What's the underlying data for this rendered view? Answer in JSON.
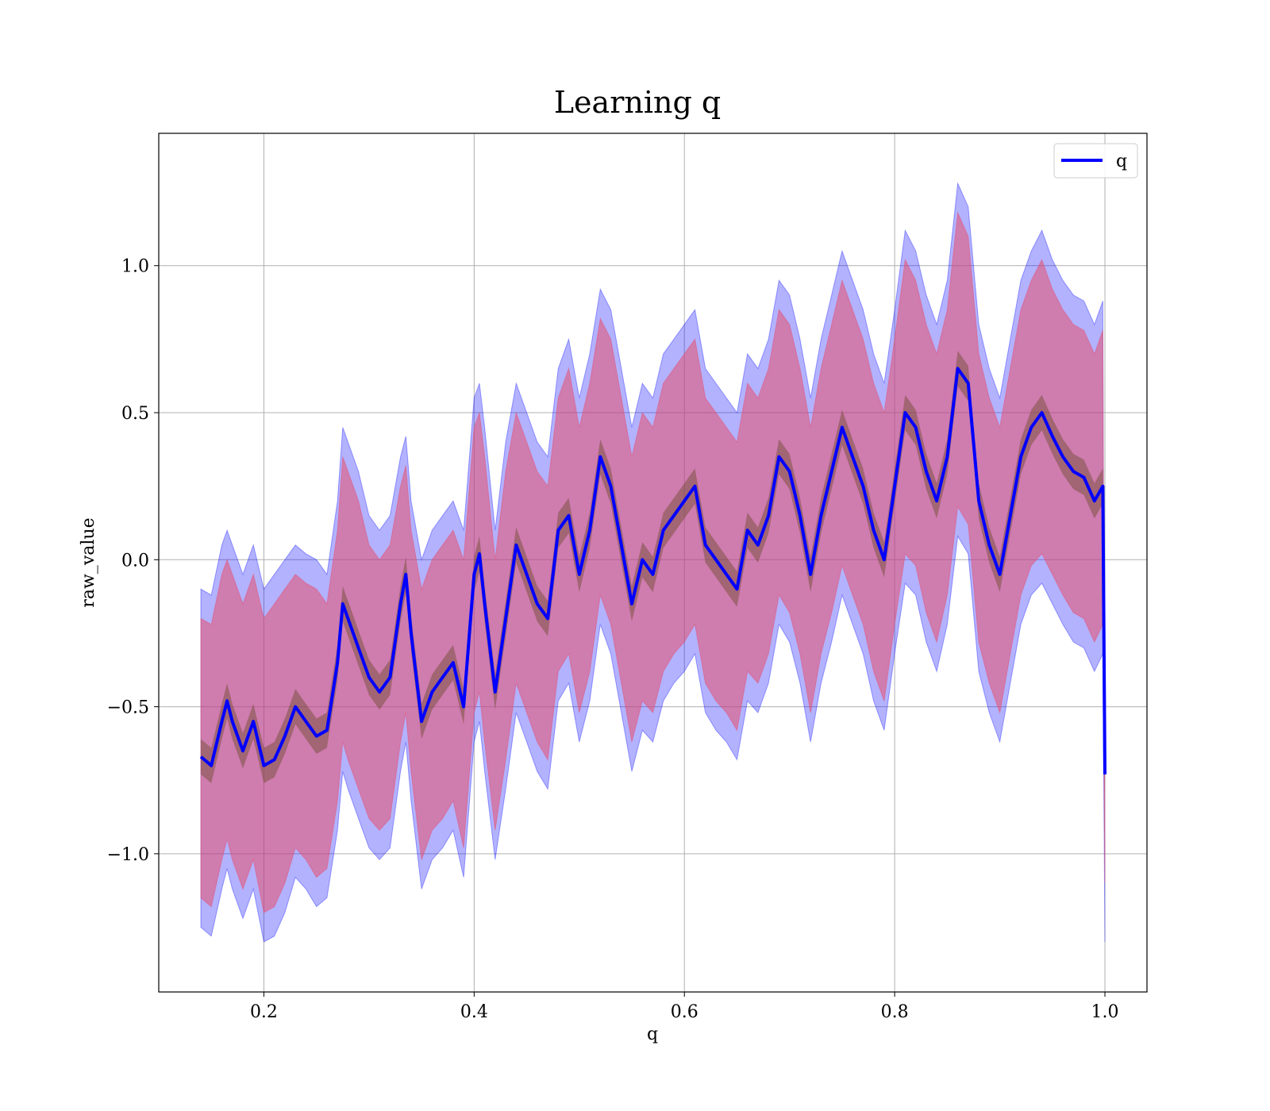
{
  "chart_data": {
    "type": "line",
    "title": "Learning q",
    "xlabel": "q",
    "ylabel": "raw_value",
    "xlim": [
      0.1,
      1.04
    ],
    "ylim": [
      -1.47,
      1.45
    ],
    "xticks": [
      0.2,
      0.4,
      0.6,
      0.8,
      1.0
    ],
    "xtick_labels": [
      "0.2",
      "0.4",
      "0.6",
      "0.8",
      "1.0"
    ],
    "yticks": [
      -1.0,
      -0.5,
      0.0,
      0.5,
      1.0
    ],
    "ytick_labels": [
      "−1.0",
      "−0.5",
      "0.0",
      "0.5",
      "1.0"
    ],
    "grid": true,
    "legend_position": "top-right",
    "colors": {
      "line": "#0000ff",
      "outer_band": "#0000ff",
      "inner_band": "#e8506e",
      "mean_band": "#6b4a2a",
      "grid": "#b0b0b0"
    },
    "series": [
      {
        "name": "q",
        "role": "mean-line",
        "x": [
          0.14,
          0.15,
          0.16,
          0.165,
          0.17,
          0.18,
          0.19,
          0.2,
          0.21,
          0.22,
          0.23,
          0.24,
          0.25,
          0.26,
          0.27,
          0.275,
          0.28,
          0.29,
          0.3,
          0.31,
          0.32,
          0.33,
          0.335,
          0.34,
          0.35,
          0.36,
          0.37,
          0.38,
          0.39,
          0.4,
          0.405,
          0.41,
          0.42,
          0.43,
          0.44,
          0.45,
          0.46,
          0.47,
          0.48,
          0.49,
          0.5,
          0.51,
          0.52,
          0.53,
          0.54,
          0.55,
          0.56,
          0.57,
          0.58,
          0.59,
          0.6,
          0.61,
          0.62,
          0.63,
          0.64,
          0.65,
          0.66,
          0.67,
          0.68,
          0.69,
          0.7,
          0.71,
          0.72,
          0.73,
          0.74,
          0.75,
          0.76,
          0.77,
          0.78,
          0.79,
          0.8,
          0.81,
          0.82,
          0.83,
          0.84,
          0.85,
          0.86,
          0.87,
          0.88,
          0.89,
          0.9,
          0.91,
          0.92,
          0.93,
          0.94,
          0.95,
          0.96,
          0.97,
          0.98,
          0.99,
          0.998,
          1.0
        ],
        "values": [
          -0.67,
          -0.7,
          -0.55,
          -0.48,
          -0.55,
          -0.65,
          -0.55,
          -0.7,
          -0.68,
          -0.6,
          -0.5,
          -0.55,
          -0.6,
          -0.58,
          -0.35,
          -0.15,
          -0.2,
          -0.3,
          -0.4,
          -0.45,
          -0.4,
          -0.15,
          -0.05,
          -0.25,
          -0.55,
          -0.45,
          -0.4,
          -0.35,
          -0.5,
          -0.05,
          0.02,
          -0.15,
          -0.45,
          -0.2,
          0.05,
          -0.05,
          -0.15,
          -0.2,
          0.1,
          0.15,
          -0.05,
          0.1,
          0.35,
          0.25,
          0.05,
          -0.15,
          0.0,
          -0.05,
          0.1,
          0.15,
          0.2,
          0.25,
          0.05,
          0.0,
          -0.05,
          -0.1,
          0.1,
          0.05,
          0.15,
          0.35,
          0.3,
          0.15,
          -0.05,
          0.15,
          0.3,
          0.45,
          0.35,
          0.25,
          0.1,
          0.0,
          0.25,
          0.5,
          0.45,
          0.3,
          0.2,
          0.35,
          0.65,
          0.6,
          0.2,
          0.05,
          -0.05,
          0.15,
          0.35,
          0.45,
          0.5,
          0.42,
          0.35,
          0.3,
          0.28,
          0.2,
          0.25,
          -0.73
        ]
      },
      {
        "role": "outer-band-upper",
        "x": [
          0.14,
          0.15,
          0.16,
          0.165,
          0.17,
          0.18,
          0.19,
          0.2,
          0.21,
          0.22,
          0.23,
          0.24,
          0.25,
          0.26,
          0.27,
          0.275,
          0.28,
          0.29,
          0.3,
          0.31,
          0.32,
          0.33,
          0.335,
          0.34,
          0.35,
          0.36,
          0.37,
          0.38,
          0.39,
          0.4,
          0.405,
          0.41,
          0.42,
          0.43,
          0.44,
          0.45,
          0.46,
          0.47,
          0.48,
          0.49,
          0.5,
          0.51,
          0.52,
          0.53,
          0.54,
          0.55,
          0.56,
          0.57,
          0.58,
          0.59,
          0.6,
          0.61,
          0.62,
          0.63,
          0.64,
          0.65,
          0.66,
          0.67,
          0.68,
          0.69,
          0.7,
          0.71,
          0.72,
          0.73,
          0.74,
          0.75,
          0.76,
          0.77,
          0.78,
          0.79,
          0.8,
          0.81,
          0.82,
          0.83,
          0.84,
          0.85,
          0.86,
          0.87,
          0.88,
          0.89,
          0.9,
          0.91,
          0.92,
          0.93,
          0.94,
          0.95,
          0.96,
          0.97,
          0.98,
          0.99,
          0.998,
          1.0
        ],
        "values": [
          -0.1,
          -0.12,
          0.05,
          0.1,
          0.05,
          -0.05,
          0.05,
          -0.1,
          -0.05,
          0.0,
          0.05,
          0.02,
          0.0,
          -0.05,
          0.2,
          0.45,
          0.4,
          0.3,
          0.15,
          0.1,
          0.15,
          0.35,
          0.42,
          0.2,
          0.0,
          0.1,
          0.15,
          0.2,
          0.1,
          0.55,
          0.6,
          0.45,
          0.1,
          0.4,
          0.6,
          0.5,
          0.4,
          0.35,
          0.65,
          0.75,
          0.55,
          0.7,
          0.92,
          0.85,
          0.65,
          0.45,
          0.6,
          0.55,
          0.7,
          0.75,
          0.8,
          0.85,
          0.65,
          0.6,
          0.55,
          0.5,
          0.7,
          0.65,
          0.75,
          0.95,
          0.9,
          0.75,
          0.55,
          0.75,
          0.9,
          1.05,
          0.95,
          0.85,
          0.7,
          0.6,
          0.85,
          1.12,
          1.05,
          0.9,
          0.8,
          0.95,
          1.28,
          1.2,
          0.8,
          0.65,
          0.55,
          0.75,
          0.95,
          1.05,
          1.12,
          1.02,
          0.95,
          0.9,
          0.88,
          0.8,
          0.88,
          -1.3
        ]
      },
      {
        "role": "outer-band-lower",
        "x": [
          0.14,
          0.15,
          0.16,
          0.165,
          0.17,
          0.18,
          0.19,
          0.2,
          0.21,
          0.22,
          0.23,
          0.24,
          0.25,
          0.26,
          0.27,
          0.275,
          0.28,
          0.29,
          0.3,
          0.31,
          0.32,
          0.33,
          0.335,
          0.34,
          0.35,
          0.36,
          0.37,
          0.38,
          0.39,
          0.4,
          0.405,
          0.41,
          0.42,
          0.43,
          0.44,
          0.45,
          0.46,
          0.47,
          0.48,
          0.49,
          0.5,
          0.51,
          0.52,
          0.53,
          0.54,
          0.55,
          0.56,
          0.57,
          0.58,
          0.59,
          0.6,
          0.61,
          0.62,
          0.63,
          0.64,
          0.65,
          0.66,
          0.67,
          0.68,
          0.69,
          0.7,
          0.71,
          0.72,
          0.73,
          0.74,
          0.75,
          0.76,
          0.77,
          0.78,
          0.79,
          0.8,
          0.81,
          0.82,
          0.83,
          0.84,
          0.85,
          0.86,
          0.87,
          0.88,
          0.89,
          0.9,
          0.91,
          0.92,
          0.93,
          0.94,
          0.95,
          0.96,
          0.97,
          0.98,
          0.99,
          0.998,
          1.0
        ],
        "values": [
          -1.25,
          -1.28,
          -1.12,
          -1.05,
          -1.12,
          -1.22,
          -1.12,
          -1.3,
          -1.28,
          -1.2,
          -1.08,
          -1.12,
          -1.18,
          -1.15,
          -0.92,
          -0.72,
          -0.78,
          -0.88,
          -0.98,
          -1.02,
          -0.98,
          -0.72,
          -0.62,
          -0.82,
          -1.12,
          -1.02,
          -0.98,
          -0.92,
          -1.08,
          -0.62,
          -0.55,
          -0.72,
          -1.02,
          -0.78,
          -0.52,
          -0.62,
          -0.72,
          -0.78,
          -0.48,
          -0.42,
          -0.62,
          -0.48,
          -0.22,
          -0.32,
          -0.52,
          -0.72,
          -0.58,
          -0.62,
          -0.48,
          -0.42,
          -0.38,
          -0.32,
          -0.52,
          -0.58,
          -0.62,
          -0.68,
          -0.48,
          -0.52,
          -0.42,
          -0.22,
          -0.28,
          -0.42,
          -0.62,
          -0.42,
          -0.28,
          -0.12,
          -0.22,
          -0.32,
          -0.48,
          -0.58,
          -0.32,
          -0.08,
          -0.12,
          -0.28,
          -0.38,
          -0.22,
          0.08,
          0.02,
          -0.38,
          -0.52,
          -0.62,
          -0.42,
          -0.22,
          -0.12,
          -0.08,
          -0.15,
          -0.22,
          -0.28,
          -0.3,
          -0.38,
          -0.32,
          -1.3
        ]
      },
      {
        "role": "inner-band-upper",
        "x": [
          0.14,
          0.15,
          0.16,
          0.165,
          0.17,
          0.18,
          0.19,
          0.2,
          0.21,
          0.22,
          0.23,
          0.24,
          0.25,
          0.26,
          0.27,
          0.275,
          0.28,
          0.29,
          0.3,
          0.31,
          0.32,
          0.33,
          0.335,
          0.34,
          0.35,
          0.36,
          0.37,
          0.38,
          0.39,
          0.4,
          0.405,
          0.41,
          0.42,
          0.43,
          0.44,
          0.45,
          0.46,
          0.47,
          0.48,
          0.49,
          0.5,
          0.51,
          0.52,
          0.53,
          0.54,
          0.55,
          0.56,
          0.57,
          0.58,
          0.59,
          0.6,
          0.61,
          0.62,
          0.63,
          0.64,
          0.65,
          0.66,
          0.67,
          0.68,
          0.69,
          0.7,
          0.71,
          0.72,
          0.73,
          0.74,
          0.75,
          0.76,
          0.77,
          0.78,
          0.79,
          0.8,
          0.81,
          0.82,
          0.83,
          0.84,
          0.85,
          0.86,
          0.87,
          0.88,
          0.89,
          0.9,
          0.91,
          0.92,
          0.93,
          0.94,
          0.95,
          0.96,
          0.97,
          0.98,
          0.99,
          0.998,
          1.0
        ],
        "values": [
          -0.2,
          -0.22,
          -0.05,
          0.0,
          -0.05,
          -0.15,
          -0.05,
          -0.2,
          -0.15,
          -0.1,
          -0.05,
          -0.08,
          -0.1,
          -0.15,
          0.1,
          0.35,
          0.3,
          0.2,
          0.05,
          0.0,
          0.05,
          0.25,
          0.32,
          0.1,
          -0.1,
          0.0,
          0.05,
          0.1,
          0.0,
          0.45,
          0.5,
          0.35,
          0.0,
          0.3,
          0.5,
          0.4,
          0.3,
          0.25,
          0.55,
          0.65,
          0.45,
          0.6,
          0.82,
          0.75,
          0.55,
          0.35,
          0.5,
          0.45,
          0.6,
          0.65,
          0.7,
          0.75,
          0.55,
          0.5,
          0.45,
          0.4,
          0.6,
          0.55,
          0.65,
          0.85,
          0.8,
          0.65,
          0.45,
          0.65,
          0.8,
          0.95,
          0.85,
          0.75,
          0.6,
          0.5,
          0.75,
          1.02,
          0.95,
          0.8,
          0.7,
          0.85,
          1.18,
          1.1,
          0.7,
          0.55,
          0.45,
          0.65,
          0.85,
          0.95,
          1.02,
          0.92,
          0.85,
          0.8,
          0.78,
          0.7,
          0.78,
          -1.0
        ]
      },
      {
        "role": "inner-band-lower",
        "x": [
          0.14,
          0.15,
          0.16,
          0.165,
          0.17,
          0.18,
          0.19,
          0.2,
          0.21,
          0.22,
          0.23,
          0.24,
          0.25,
          0.26,
          0.27,
          0.275,
          0.28,
          0.29,
          0.3,
          0.31,
          0.32,
          0.33,
          0.335,
          0.34,
          0.35,
          0.36,
          0.37,
          0.38,
          0.39,
          0.4,
          0.405,
          0.41,
          0.42,
          0.43,
          0.44,
          0.45,
          0.46,
          0.47,
          0.48,
          0.49,
          0.5,
          0.51,
          0.52,
          0.53,
          0.54,
          0.55,
          0.56,
          0.57,
          0.58,
          0.59,
          0.6,
          0.61,
          0.62,
          0.63,
          0.64,
          0.65,
          0.66,
          0.67,
          0.68,
          0.69,
          0.7,
          0.71,
          0.72,
          0.73,
          0.74,
          0.75,
          0.76,
          0.77,
          0.78,
          0.79,
          0.8,
          0.81,
          0.82,
          0.83,
          0.84,
          0.85,
          0.86,
          0.87,
          0.88,
          0.89,
          0.9,
          0.91,
          0.92,
          0.93,
          0.94,
          0.95,
          0.96,
          0.97,
          0.98,
          0.99,
          0.998,
          1.0
        ],
        "values": [
          -1.15,
          -1.18,
          -1.02,
          -0.95,
          -1.02,
          -1.12,
          -1.02,
          -1.2,
          -1.18,
          -1.1,
          -0.98,
          -1.02,
          -1.08,
          -1.05,
          -0.82,
          -0.62,
          -0.68,
          -0.78,
          -0.88,
          -0.92,
          -0.88,
          -0.62,
          -0.52,
          -0.72,
          -1.02,
          -0.92,
          -0.88,
          -0.82,
          -0.98,
          -0.52,
          -0.45,
          -0.62,
          -0.92,
          -0.68,
          -0.42,
          -0.52,
          -0.62,
          -0.68,
          -0.38,
          -0.32,
          -0.52,
          -0.38,
          -0.12,
          -0.22,
          -0.42,
          -0.62,
          -0.48,
          -0.52,
          -0.38,
          -0.32,
          -0.28,
          -0.22,
          -0.42,
          -0.48,
          -0.52,
          -0.58,
          -0.38,
          -0.42,
          -0.32,
          -0.12,
          -0.18,
          -0.32,
          -0.52,
          -0.32,
          -0.18,
          -0.02,
          -0.12,
          -0.22,
          -0.38,
          -0.48,
          -0.22,
          0.02,
          -0.02,
          -0.18,
          -0.28,
          -0.12,
          0.18,
          0.12,
          -0.28,
          -0.42,
          -0.52,
          -0.32,
          -0.12,
          -0.02,
          0.02,
          -0.05,
          -0.12,
          -0.18,
          -0.2,
          -0.28,
          -0.22,
          -1.1
        ]
      }
    ]
  }
}
